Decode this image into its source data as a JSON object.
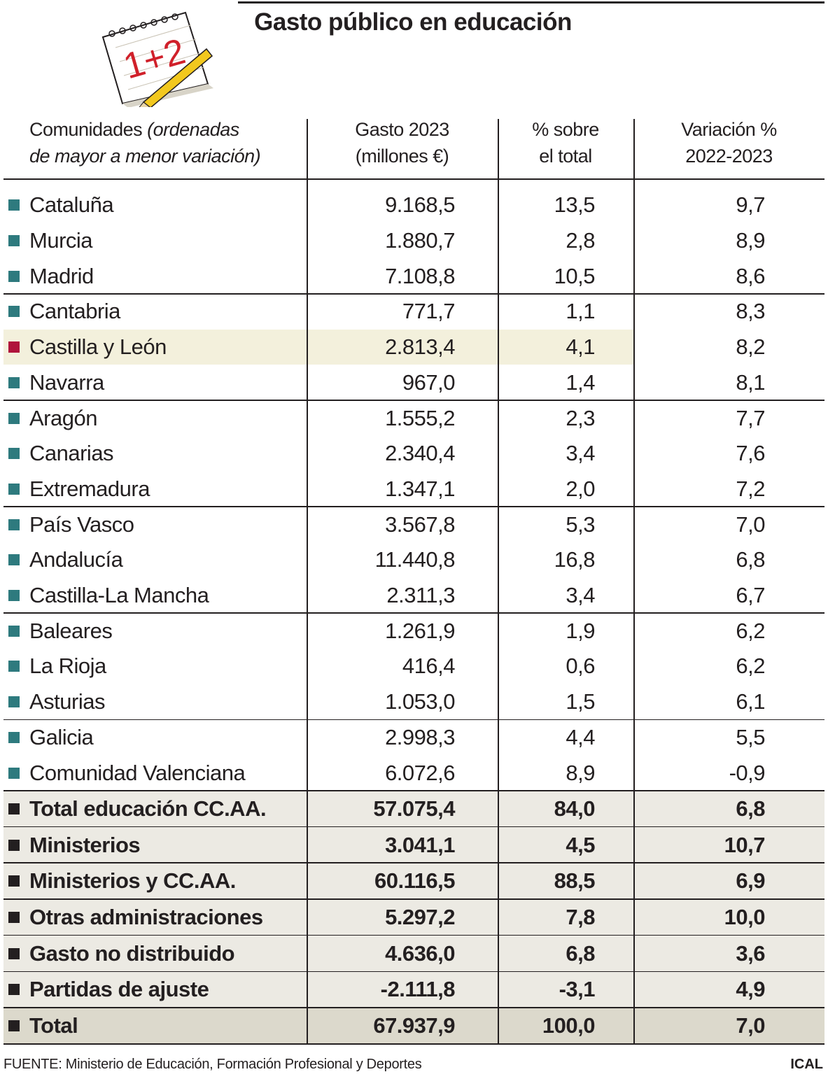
{
  "header": {
    "title": "Gasto público en educación",
    "icon_text": "1+2"
  },
  "table": {
    "columns": [
      {
        "name": "Comunidades",
        "note_lines": [
          "(ordenadas",
          "de mayor a menor variación)"
        ]
      },
      {
        "lines": [
          "Gasto 2023",
          "(millones €)"
        ]
      },
      {
        "lines": [
          "% sobre",
          "el total"
        ]
      },
      {
        "lines": [
          "Variación %",
          "2022-2023"
        ]
      }
    ],
    "region_color": "#2e7a7e",
    "highlight_color": "#b0143c",
    "total_color": "#231f20",
    "regions": [
      {
        "name": "Cataluña",
        "gasto": "9.168,5",
        "pct": "13,5",
        "var": "9,7"
      },
      {
        "name": "Murcia",
        "gasto": "1.880,7",
        "pct": "2,8",
        "var": "8,9"
      },
      {
        "name": "Madrid",
        "gasto": "7.108,8",
        "pct": "10,5",
        "var": "8,6"
      },
      {
        "name": "Cantabria",
        "gasto": "771,7",
        "pct": "1,1",
        "var": "8,3"
      },
      {
        "name": "Castilla y León",
        "gasto": "2.813,4",
        "pct": "4,1",
        "var": "8,2",
        "highlight": true
      },
      {
        "name": "Navarra",
        "gasto": "967,0",
        "pct": "1,4",
        "var": "8,1"
      },
      {
        "name": "Aragón",
        "gasto": "1.555,2",
        "pct": "2,3",
        "var": "7,7"
      },
      {
        "name": "Canarias",
        "gasto": "2.340,4",
        "pct": "3,4",
        "var": "7,6"
      },
      {
        "name": "Extremadura",
        "gasto": "1.347,1",
        "pct": "2,0",
        "var": "7,2"
      },
      {
        "name": "País Vasco",
        "gasto": "3.567,8",
        "pct": "5,3",
        "var": "7,0"
      },
      {
        "name": "Andalucía",
        "gasto": "11.440,8",
        "pct": "16,8",
        "var": "6,8"
      },
      {
        "name": "Castilla-La Mancha",
        "gasto": "2.311,3",
        "pct": "3,4",
        "var": "6,7"
      },
      {
        "name": "Baleares",
        "gasto": "1.261,9",
        "pct": "1,9",
        "var": "6,2"
      },
      {
        "name": "La Rioja",
        "gasto": "416,4",
        "pct": "0,6",
        "var": "6,2"
      },
      {
        "name": "Asturias",
        "gasto": "1.053,0",
        "pct": "1,5",
        "var": "6,1"
      },
      {
        "name": "Galicia",
        "gasto": "2.998,3",
        "pct": "4,4",
        "var": "5,5"
      },
      {
        "name": "Comunidad Valenciana",
        "gasto": "6.072,6",
        "pct": "8,9",
        "var": "-0,9"
      }
    ],
    "totals": [
      {
        "name": "Total educación CC.AA.",
        "gasto": "57.075,4",
        "pct": "84,0",
        "var": "6,8"
      },
      {
        "name": "Ministerios",
        "gasto": "3.041,1",
        "pct": "4,5",
        "var": "10,7"
      },
      {
        "name": "Ministerios y CC.AA.",
        "gasto": "60.116,5",
        "pct": "88,5",
        "var": "6,9"
      },
      {
        "name": "Otras administraciones",
        "gasto": "5.297,2",
        "pct": "7,8",
        "var": "10,0"
      },
      {
        "name": "Gasto no distribuido",
        "gasto": "4.636,0",
        "pct": "6,8",
        "var": "3,6"
      },
      {
        "name": "Partidas de ajuste",
        "gasto": "-2.111,8",
        "pct": "-3,1",
        "var": "4,9"
      },
      {
        "name": "Total",
        "gasto": "67.937,9",
        "pct": "100,0",
        "var": "7,0"
      }
    ]
  },
  "footer": {
    "source": "FUENTE: Ministerio de Educación, Formación Profesional y Deportes",
    "credit": "ICAL"
  }
}
